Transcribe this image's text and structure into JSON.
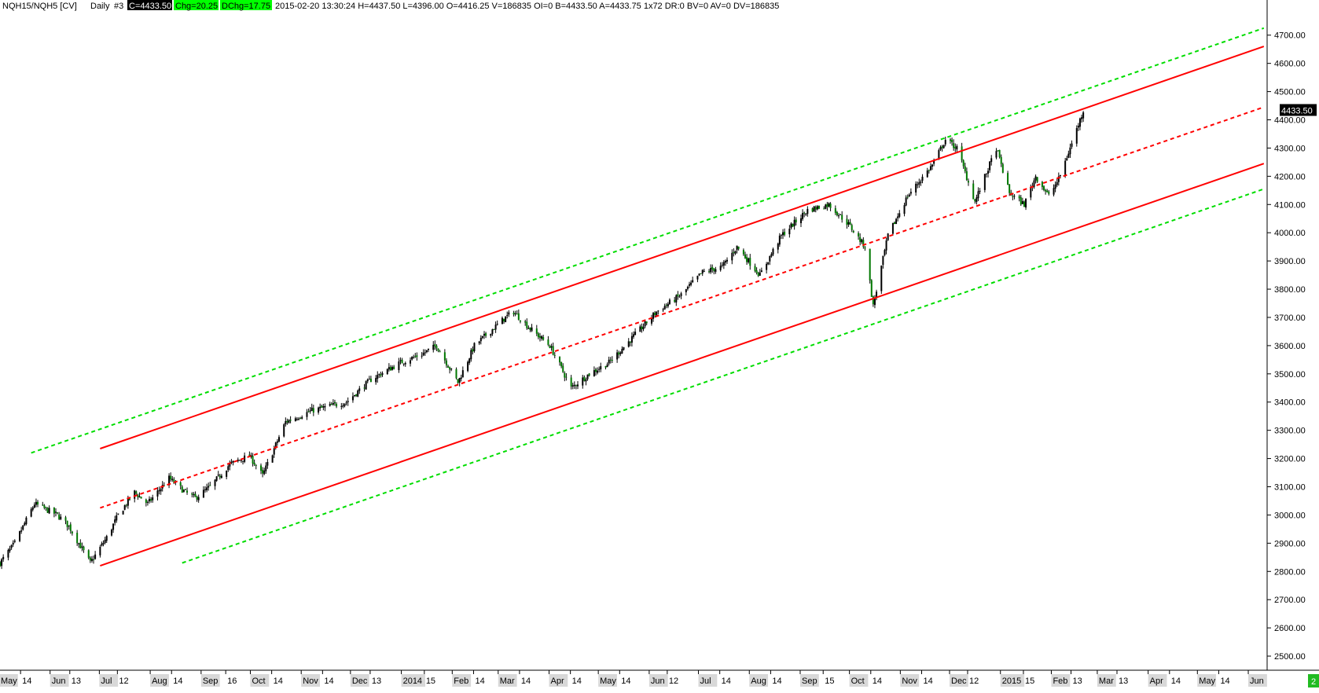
{
  "header": {
    "symbol": "NQH15/NQH5 [CV]",
    "interval": "Daily",
    "num": "#3",
    "close": "C=4433.50",
    "chg": "Chg=20.25",
    "dchg": "DChg=17.75",
    "stats": "2015-02-20 13:30:24 H=4437.50 L=4396.00 O=4416.25 V=186835 OI=0 B=4433.50 A=4433.75 1x72 DR:0 BV=0 AV=0 DV=186835",
    "badge_bg_colors": {
      "close": "#000000",
      "chg": "#00ff00",
      "dchg": "#00ff00"
    }
  },
  "price_tag": "4433.50",
  "corner_badge": "2",
  "chart_data": {
    "type": "candlestick",
    "ylim": [
      2450,
      4780
    ],
    "y_ticks": [
      "2500.00",
      "2600.00",
      "2700.00",
      "2800.00",
      "2900.00",
      "3000.00",
      "3100.00",
      "3200.00",
      "3300.00",
      "3400.00",
      "3500.00",
      "3600.00",
      "3700.00",
      "3800.00",
      "3900.00",
      "4000.00",
      "4100.00",
      "4200.00",
      "4300.00",
      "4400.00",
      "4500.00",
      "4600.00",
      "4700.00"
    ],
    "x_range": [
      "2013-05-01",
      "2015-06-12"
    ],
    "x_labels": [
      {
        "date": "2013-05-01",
        "label": "May",
        "box": true
      },
      {
        "date": "2013-05-14",
        "label": "14",
        "box": false
      },
      {
        "date": "2013-06-01",
        "label": "Jun",
        "box": true
      },
      {
        "date": "2013-06-13",
        "label": "13",
        "box": false
      },
      {
        "date": "2013-07-01",
        "label": "Jul",
        "box": true
      },
      {
        "date": "2013-07-12",
        "label": "12",
        "box": false
      },
      {
        "date": "2013-08-01",
        "label": "Aug",
        "box": true
      },
      {
        "date": "2013-08-14",
        "label": "14",
        "box": false
      },
      {
        "date": "2013-09-01",
        "label": "Sep",
        "box": true
      },
      {
        "date": "2013-09-16",
        "label": "16",
        "box": false
      },
      {
        "date": "2013-10-01",
        "label": "Oct",
        "box": true
      },
      {
        "date": "2013-10-14",
        "label": "14",
        "box": false
      },
      {
        "date": "2013-11-01",
        "label": "Nov",
        "box": true
      },
      {
        "date": "2013-11-14",
        "label": "14",
        "box": false
      },
      {
        "date": "2013-12-01",
        "label": "Dec",
        "box": true
      },
      {
        "date": "2013-12-13",
        "label": "13",
        "box": false
      },
      {
        "date": "2014-01-01",
        "label": "2014",
        "box": true
      },
      {
        "date": "2014-01-15",
        "label": "15",
        "box": false
      },
      {
        "date": "2014-02-01",
        "label": "Feb",
        "box": true
      },
      {
        "date": "2014-02-14",
        "label": "14",
        "box": false
      },
      {
        "date": "2014-03-01",
        "label": "Mar",
        "box": true
      },
      {
        "date": "2014-03-14",
        "label": "14",
        "box": false
      },
      {
        "date": "2014-04-01",
        "label": "Apr",
        "box": true
      },
      {
        "date": "2014-04-14",
        "label": "14",
        "box": false
      },
      {
        "date": "2014-05-01",
        "label": "May",
        "box": true
      },
      {
        "date": "2014-05-14",
        "label": "14",
        "box": false
      },
      {
        "date": "2014-06-01",
        "label": "Jun",
        "box": true
      },
      {
        "date": "2014-06-12",
        "label": "12",
        "box": false
      },
      {
        "date": "2014-07-01",
        "label": "Jul",
        "box": true
      },
      {
        "date": "2014-07-14",
        "label": "14",
        "box": false
      },
      {
        "date": "2014-08-01",
        "label": "Aug",
        "box": true
      },
      {
        "date": "2014-08-14",
        "label": "14",
        "box": false
      },
      {
        "date": "2014-09-01",
        "label": "Sep",
        "box": true
      },
      {
        "date": "2014-09-15",
        "label": "15",
        "box": false
      },
      {
        "date": "2014-10-01",
        "label": "Oct",
        "box": true
      },
      {
        "date": "2014-10-14",
        "label": "14",
        "box": false
      },
      {
        "date": "2014-11-01",
        "label": "Nov",
        "box": true
      },
      {
        "date": "2014-11-14",
        "label": "14",
        "box": false
      },
      {
        "date": "2014-12-01",
        "label": "Dec",
        "box": true
      },
      {
        "date": "2014-12-12",
        "label": "12",
        "box": false
      },
      {
        "date": "2015-01-01",
        "label": "2015",
        "box": true
      },
      {
        "date": "2015-01-15",
        "label": "15",
        "box": false
      },
      {
        "date": "2015-02-01",
        "label": "Feb",
        "box": true
      },
      {
        "date": "2015-02-13",
        "label": "13",
        "box": false
      },
      {
        "date": "2015-03-01",
        "label": "Mar",
        "box": true
      },
      {
        "date": "2015-03-13",
        "label": "13",
        "box": false
      },
      {
        "date": "2015-04-01",
        "label": "Apr",
        "box": true
      },
      {
        "date": "2015-04-14",
        "label": "14",
        "box": false
      },
      {
        "date": "2015-05-01",
        "label": "May",
        "box": true
      },
      {
        "date": "2015-05-14",
        "label": "14",
        "box": false
      },
      {
        "date": "2015-06-01",
        "label": "Jun",
        "box": true
      }
    ],
    "price_path": [
      [
        "2013-05-01",
        2830
      ],
      [
        "2013-05-10",
        2900
      ],
      [
        "2013-05-22",
        3040
      ],
      [
        "2013-06-05",
        3000
      ],
      [
        "2013-06-12",
        2960
      ],
      [
        "2013-06-25",
        2830
      ],
      [
        "2013-07-05",
        2920
      ],
      [
        "2013-07-12",
        3000
      ],
      [
        "2013-07-22",
        3080
      ],
      [
        "2013-07-30",
        3040
      ],
      [
        "2013-08-12",
        3130
      ],
      [
        "2013-08-22",
        3080
      ],
      [
        "2013-08-28",
        3060
      ],
      [
        "2013-09-06",
        3100
      ],
      [
        "2013-09-18",
        3180
      ],
      [
        "2013-09-30",
        3210
      ],
      [
        "2013-10-08",
        3140
      ],
      [
        "2013-10-22",
        3330
      ],
      [
        "2013-11-07",
        3370
      ],
      [
        "2013-11-14",
        3380
      ],
      [
        "2013-11-28",
        3400
      ],
      [
        "2013-12-13",
        3480
      ],
      [
        "2013-12-31",
        3540
      ],
      [
        "2014-01-13",
        3570
      ],
      [
        "2014-01-22",
        3600
      ],
      [
        "2014-02-04",
        3470
      ],
      [
        "2014-02-14",
        3600
      ],
      [
        "2014-03-05",
        3700
      ],
      [
        "2014-03-10",
        3720
      ],
      [
        "2014-03-20",
        3660
      ],
      [
        "2014-04-01",
        3600
      ],
      [
        "2014-04-14",
        3450
      ],
      [
        "2014-04-25",
        3500
      ],
      [
        "2014-05-07",
        3540
      ],
      [
        "2014-05-20",
        3620
      ],
      [
        "2014-06-05",
        3720
      ],
      [
        "2014-06-20",
        3780
      ],
      [
        "2014-07-03",
        3860
      ],
      [
        "2014-07-15",
        3880
      ],
      [
        "2014-07-24",
        3950
      ],
      [
        "2014-08-07",
        3850
      ],
      [
        "2014-08-20",
        3990
      ],
      [
        "2014-09-05",
        4080
      ],
      [
        "2014-09-18",
        4100
      ],
      [
        "2014-09-30",
        4030
      ],
      [
        "2014-10-10",
        3950
      ],
      [
        "2014-10-15",
        3740
      ],
      [
        "2014-10-24",
        3990
      ],
      [
        "2014-11-05",
        4130
      ],
      [
        "2014-11-20",
        4240
      ],
      [
        "2014-11-28",
        4330
      ],
      [
        "2014-12-05",
        4300
      ],
      [
        "2014-12-16",
        4110
      ],
      [
        "2014-12-29",
        4300
      ],
      [
        "2015-01-06",
        4140
      ],
      [
        "2015-01-15",
        4100
      ],
      [
        "2015-01-22",
        4200
      ],
      [
        "2015-01-30",
        4130
      ],
      [
        "2015-02-05",
        4190
      ],
      [
        "2015-02-12",
        4300
      ],
      [
        "2015-02-20",
        4433.5
      ]
    ],
    "lines": [
      {
        "color": "#00dd00",
        "dash": true,
        "start": [
          "2013-05-20",
          3220
        ],
        "end": [
          "2015-06-10",
          4725
        ]
      },
      {
        "color": "#ff0000",
        "dash": false,
        "start": [
          "2013-07-01",
          3235
        ],
        "end": [
          "2015-06-10",
          4660
        ]
      },
      {
        "color": "#ff0000",
        "dash": true,
        "start": [
          "2013-07-01",
          3025
        ],
        "end": [
          "2015-06-10",
          4445
        ]
      },
      {
        "color": "#ff0000",
        "dash": false,
        "start": [
          "2013-07-01",
          2820
        ],
        "end": [
          "2015-06-10",
          4245
        ]
      },
      {
        "color": "#00dd00",
        "dash": true,
        "start": [
          "2013-08-20",
          2830
        ],
        "end": [
          "2015-06-10",
          4155
        ]
      }
    ],
    "colors": {
      "up": "#000000",
      "down": "#007700",
      "panel": "#000000",
      "grid_border": "#000000"
    },
    "legend": "none",
    "grid": false
  }
}
